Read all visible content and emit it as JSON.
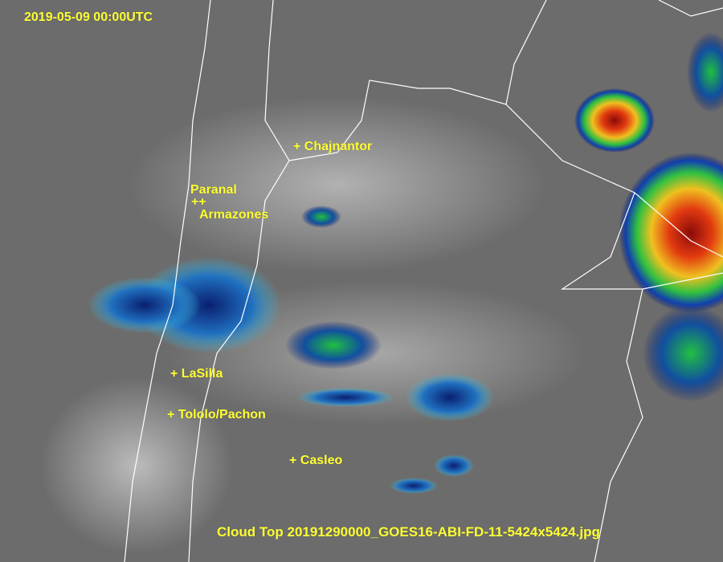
{
  "timestamp": "2019-05-09 00:00UTC",
  "caption": "Cloud Top 20191290000_GOES16-ABI-FD-11-5424x5424.jpg",
  "sites": [
    {
      "marker": "+",
      "name": "Chajnantor"
    },
    {
      "marker": "",
      "name": "Paranal"
    },
    {
      "marker": "++",
      "name": ""
    },
    {
      "marker": "",
      "name": "Armazones"
    },
    {
      "marker": "+",
      "name": "LaSilla"
    },
    {
      "marker": "+",
      "name": "Tololo/Pachon"
    },
    {
      "marker": "+",
      "name": "Casleo"
    }
  ],
  "colors": {
    "label": "#ffff33",
    "borders": "#ffffff",
    "background": "#6e6e6e",
    "cold_cloud_low": "#0a1f8c",
    "cold_cloud_mid": "#22c84a",
    "cold_cloud_high": "#e02010"
  }
}
